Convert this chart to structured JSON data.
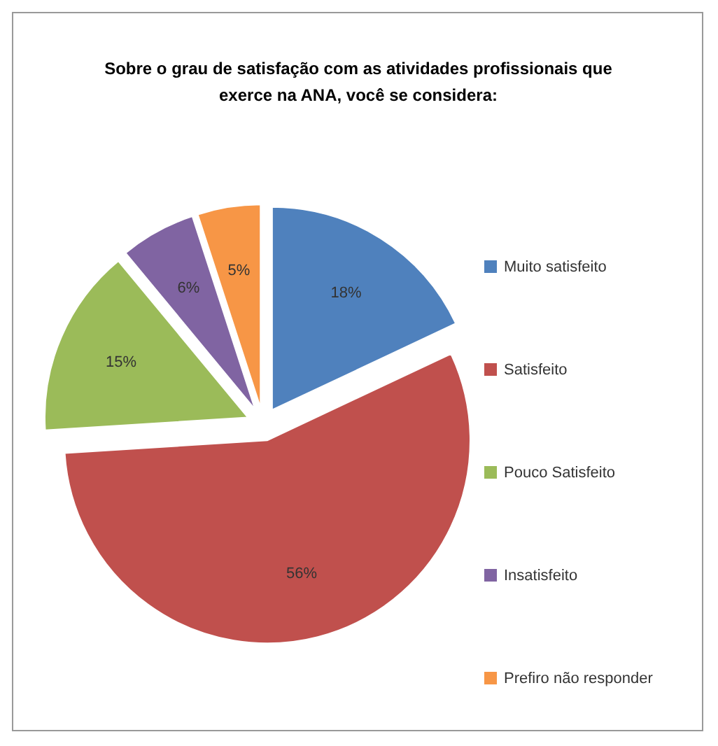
{
  "chart_data": {
    "type": "pie",
    "title": "Sobre o grau de satisfação com as atividades profissionais que exerce na ANA, você se considera:",
    "categories": [
      "Muito satisfeito",
      "Satisfeito",
      "Pouco Satisfeito",
      "Insatisfeito",
      "Prefiro não responder"
    ],
    "values": [
      18,
      56,
      15,
      6,
      5
    ],
    "colors": [
      "#4f81bd",
      "#c0504d",
      "#9bbb59",
      "#8064a2",
      "#f79646"
    ],
    "value_labels": [
      "18%",
      "56%",
      "15%",
      "6%",
      "5%"
    ],
    "legend": "right"
  }
}
